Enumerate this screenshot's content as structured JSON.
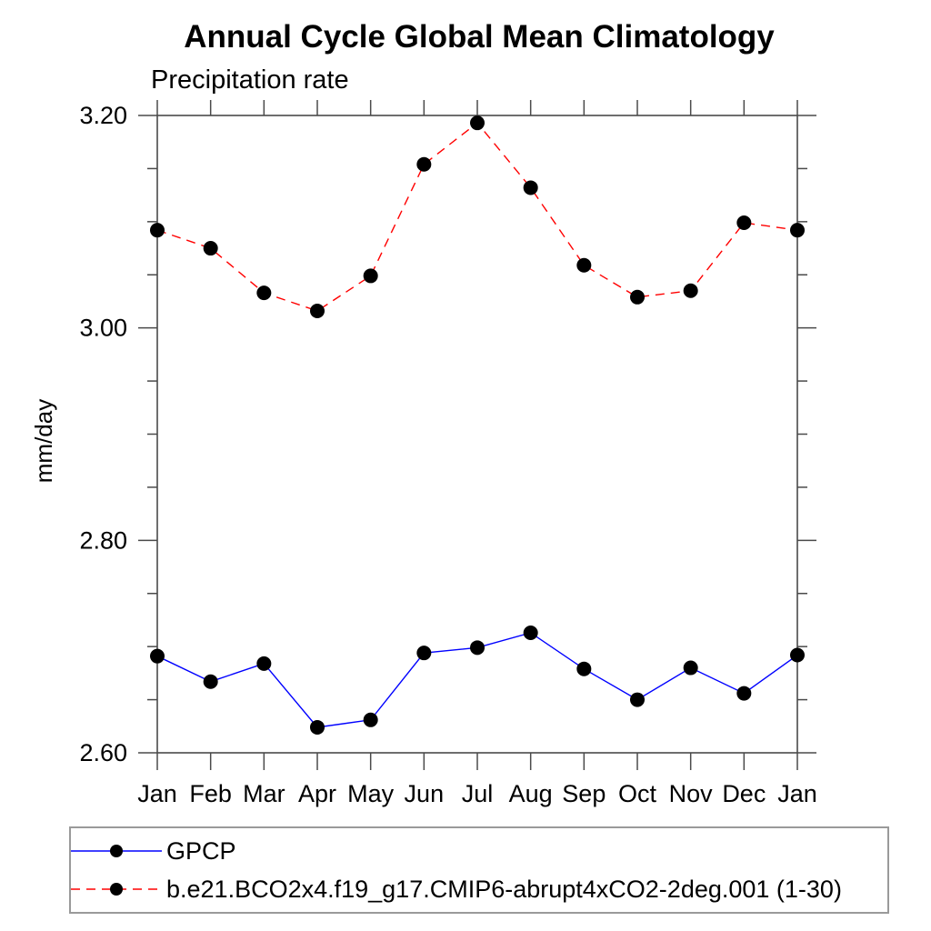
{
  "chart_data": {
    "type": "line",
    "title": "Annual Cycle Global Mean Climatology",
    "left_axis_title": "Precipitation rate",
    "ylabel": "mm/day",
    "xlabel": "",
    "categories": [
      "Jan",
      "Feb",
      "Mar",
      "Apr",
      "May",
      "Jun",
      "Jul",
      "Aug",
      "Sep",
      "Oct",
      "Nov",
      "Dec",
      "Jan"
    ],
    "series": [
      {
        "name": "GPCP",
        "color": "#0000ff",
        "line_style": "solid",
        "marker": "filled-circle",
        "values": [
          2.691,
          2.667,
          2.684,
          2.624,
          2.631,
          2.694,
          2.699,
          2.713,
          2.679,
          2.65,
          2.68,
          2.656,
          2.692
        ]
      },
      {
        "name": "b.e21.BCO2x4.f19_g17.CMIP6-abrupt4xCO2-2deg.001 (1-30)",
        "color": "#ff0000",
        "line_style": "dashed",
        "marker": "filled-circle",
        "values": [
          3.092,
          3.075,
          3.033,
          3.016,
          3.049,
          3.154,
          3.193,
          3.132,
          3.059,
          3.029,
          3.035,
          3.099,
          3.092
        ]
      }
    ],
    "ylim": [
      2.6,
      3.2
    ],
    "y_major_step": 0.2,
    "y_minor_step": 0.05,
    "y_tick_labels": [
      "2.60",
      "2.80",
      "3.00",
      "3.20"
    ],
    "grid": false,
    "legend_position": "bottom-left-box",
    "axis_color": "#4a4a4a",
    "marker_color": "#000000",
    "ticks_outside": true
  }
}
